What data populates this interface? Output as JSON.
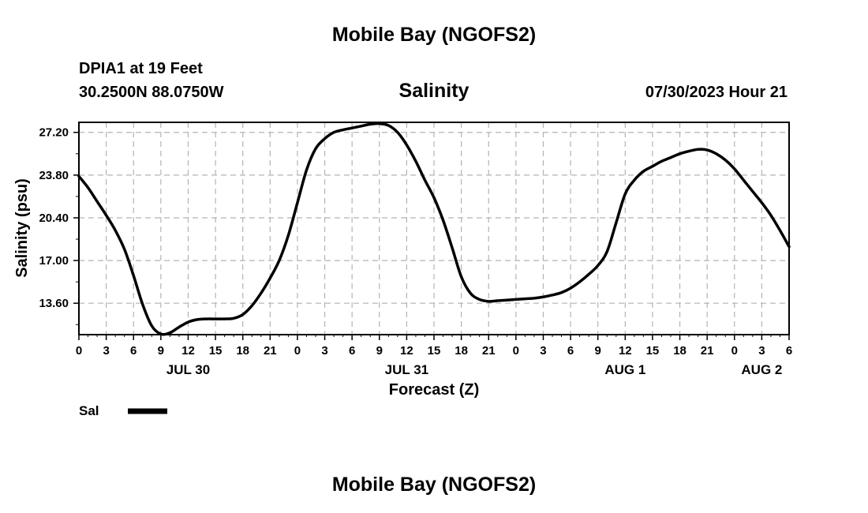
{
  "header": {
    "title": "Mobile Bay (NGOFS2)",
    "station": "DPIA1 at 19 Feet",
    "coordinates": "30.2500N  88.0750W",
    "product": "Salinity",
    "datetime": "07/30/2023 Hour 21"
  },
  "footer": {
    "title": "Mobile Bay (NGOFS2)"
  },
  "chart_data": {
    "type": "line",
    "title": "Salinity",
    "xlabel": "Forecast (Z)",
    "ylabel": "Salinity (psu)",
    "x_unit": "hours since JUL 30 00Z",
    "xlim": [
      0,
      78
    ],
    "ylim": [
      11.1,
      28.0
    ],
    "x_ticks": [
      0,
      3,
      6,
      9,
      12,
      15,
      18,
      21,
      24,
      27,
      30,
      33,
      36,
      39,
      42,
      45,
      48,
      51,
      54,
      57,
      60,
      63,
      66,
      69,
      72,
      75,
      78
    ],
    "x_tick_labels": [
      "0",
      "3",
      "6",
      "9",
      "12",
      "15",
      "18",
      "21",
      "0",
      "3",
      "6",
      "9",
      "12",
      "15",
      "18",
      "21",
      "0",
      "3",
      "6",
      "9",
      "12",
      "15",
      "18",
      "21",
      "0",
      "3",
      "6"
    ],
    "y_ticks": [
      13.6,
      17.0,
      20.4,
      23.8,
      27.2
    ],
    "y_tick_labels": [
      "13.60",
      "17.00",
      "20.40",
      "23.80",
      "27.20"
    ],
    "date_labels": [
      {
        "label": "JUL 30",
        "x": 12
      },
      {
        "label": "JUL 31",
        "x": 36
      },
      {
        "label": "AUG 1",
        "x": 60
      },
      {
        "label": "AUG 2",
        "x": 75
      }
    ],
    "grid": true,
    "legend_position": "bottom-left",
    "series": [
      {
        "name": "Sal",
        "color": "#000000",
        "x": [
          0,
          1,
          2,
          3,
          4,
          5,
          6,
          7,
          8,
          9,
          10,
          11,
          12,
          13,
          14,
          15,
          16,
          17,
          18,
          19,
          20,
          21,
          22,
          23,
          24,
          25,
          26,
          27,
          28,
          29,
          30,
          31,
          32,
          33,
          34,
          35,
          36,
          37,
          38,
          39,
          40,
          41,
          42,
          43,
          44,
          45,
          46,
          47,
          48,
          49,
          50,
          51,
          52,
          53,
          54,
          55,
          56,
          57,
          58,
          59,
          60,
          61,
          62,
          63,
          64,
          65,
          66,
          67,
          68,
          69,
          70,
          71,
          72,
          73,
          74,
          75,
          76,
          77,
          78
        ],
        "values": [
          23.7,
          22.8,
          21.7,
          20.6,
          19.4,
          17.9,
          15.8,
          13.5,
          11.8,
          11.15,
          11.25,
          11.7,
          12.1,
          12.3,
          12.35,
          12.35,
          12.35,
          12.4,
          12.7,
          13.4,
          14.4,
          15.6,
          17.0,
          19.0,
          21.6,
          24.2,
          25.9,
          26.7,
          27.2,
          27.4,
          27.55,
          27.7,
          27.85,
          27.9,
          27.75,
          27.2,
          26.2,
          24.9,
          23.4,
          22.0,
          20.2,
          18.0,
          15.7,
          14.4,
          13.9,
          13.75,
          13.8,
          13.85,
          13.9,
          13.95,
          14.0,
          14.1,
          14.25,
          14.45,
          14.8,
          15.3,
          15.9,
          16.6,
          17.7,
          20.0,
          22.3,
          23.4,
          24.1,
          24.5,
          24.9,
          25.2,
          25.5,
          25.7,
          25.85,
          25.8,
          25.5,
          25.0,
          24.3,
          23.4,
          22.5,
          21.6,
          20.6,
          19.4,
          18.1
        ]
      }
    ]
  }
}
